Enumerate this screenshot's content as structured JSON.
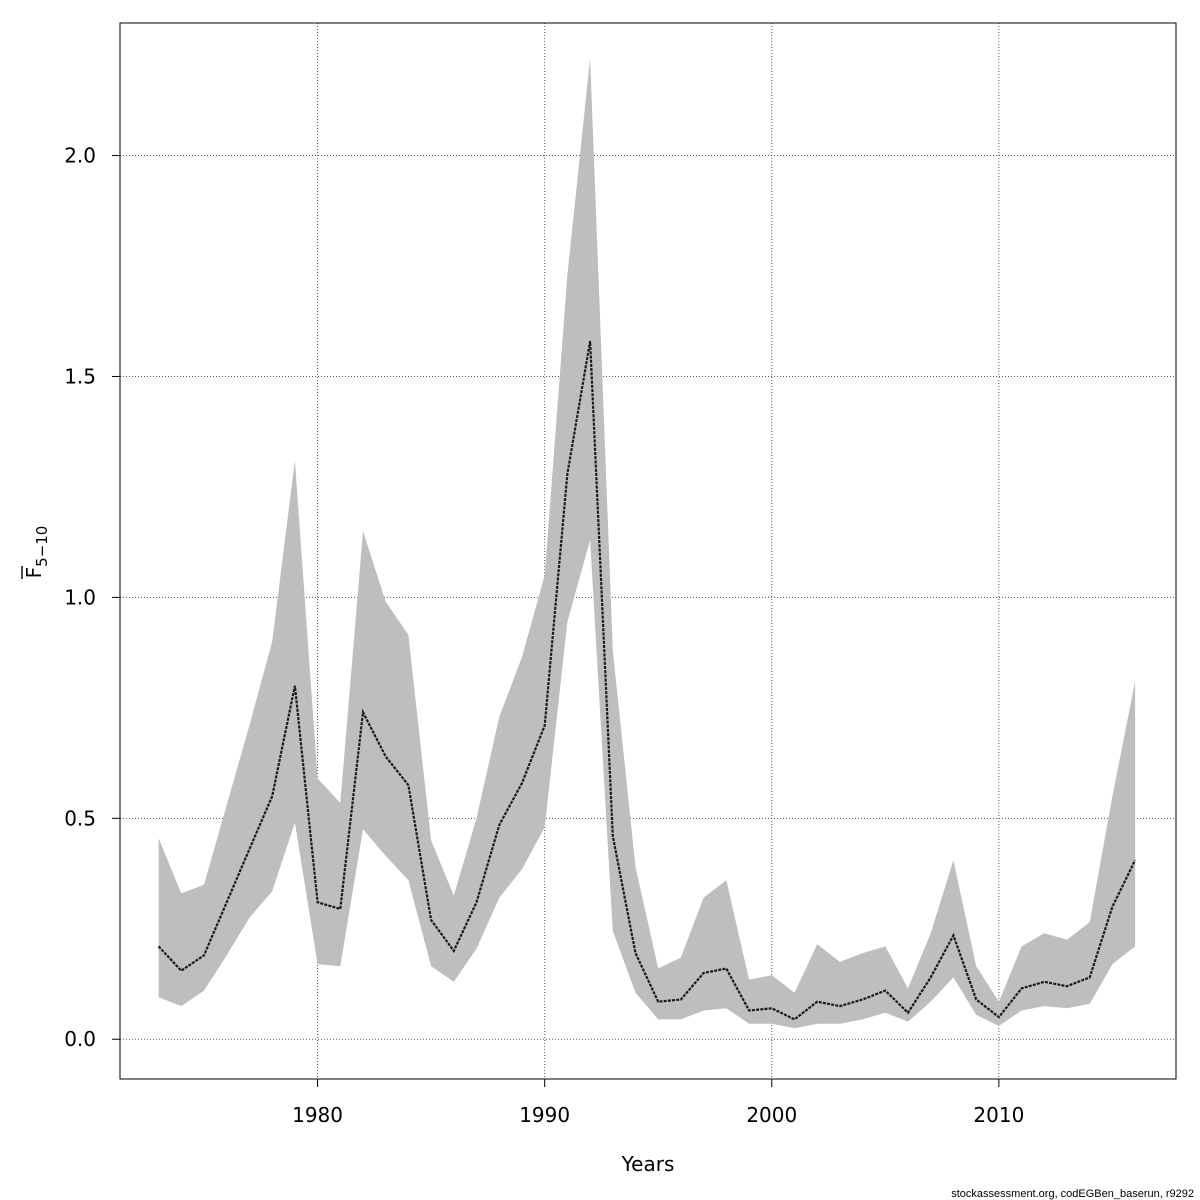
{
  "chart_data": {
    "type": "line",
    "title": "",
    "xlabel": "Years",
    "ylabel": {
      "main": "F",
      "subscript": "5−10"
    },
    "xlim": [
      1971.3,
      2017.8
    ],
    "ylim": [
      -0.09,
      2.3
    ],
    "xticks": [
      1980,
      1990,
      2000,
      2010
    ],
    "yticks": [
      0.0,
      0.5,
      1.0,
      1.5,
      2.0
    ],
    "ytick_labels": [
      "0.0",
      "0.5",
      "1.0",
      "1.5",
      "2.0"
    ],
    "grid": true,
    "colors": {
      "band": "#bebebe",
      "line": "#1a1a1a",
      "grid": "#555555",
      "frame": "#000000"
    },
    "x": [
      1973,
      1974,
      1975,
      1976,
      1977,
      1978,
      1979,
      1980,
      1981,
      1982,
      1983,
      1984,
      1985,
      1986,
      1987,
      1988,
      1989,
      1990,
      1991,
      1992,
      1993,
      1994,
      1995,
      1996,
      1997,
      1998,
      1999,
      2000,
      2001,
      2002,
      2003,
      2004,
      2005,
      2006,
      2007,
      2008,
      2009,
      2010,
      2011,
      2012,
      2013,
      2014,
      2015,
      2016
    ],
    "series": [
      {
        "values": [
          0.21,
          0.155,
          0.19,
          0.31,
          0.43,
          0.55,
          0.8,
          0.31,
          0.295,
          0.74,
          0.64,
          0.575,
          0.27,
          0.2,
          0.31,
          0.485,
          0.58,
          0.71,
          1.28,
          1.58,
          0.46,
          0.195,
          0.085,
          0.09,
          0.15,
          0.16,
          0.065,
          0.07,
          0.045,
          0.085,
          0.075,
          0.09,
          0.11,
          0.06,
          0.14,
          0.235,
          0.09,
          0.05,
          0.115,
          0.13,
          0.12,
          0.14,
          0.3,
          0.405
        ]
      }
    ],
    "band": {
      "upper": [
        0.455,
        0.33,
        0.35,
        0.53,
        0.71,
        0.9,
        1.31,
        0.59,
        0.535,
        1.15,
        0.99,
        0.915,
        0.45,
        0.325,
        0.5,
        0.73,
        0.865,
        1.05,
        1.73,
        2.22,
        0.88,
        0.39,
        0.16,
        0.185,
        0.32,
        0.36,
        0.135,
        0.145,
        0.105,
        0.215,
        0.175,
        0.195,
        0.21,
        0.115,
        0.24,
        0.405,
        0.165,
        0.085,
        0.21,
        0.24,
        0.225,
        0.265,
        0.55,
        0.81
      ],
      "lower": [
        0.095,
        0.075,
        0.11,
        0.19,
        0.275,
        0.335,
        0.49,
        0.17,
        0.165,
        0.475,
        0.415,
        0.36,
        0.165,
        0.13,
        0.205,
        0.32,
        0.385,
        0.48,
        0.945,
        1.13,
        0.245,
        0.105,
        0.045,
        0.045,
        0.065,
        0.07,
        0.035,
        0.035,
        0.025,
        0.035,
        0.035,
        0.045,
        0.06,
        0.04,
        0.085,
        0.14,
        0.055,
        0.03,
        0.065,
        0.075,
        0.07,
        0.08,
        0.17,
        0.21
      ]
    }
  },
  "credit": "stockassessment.org, codEGBen_baserun, r9292"
}
